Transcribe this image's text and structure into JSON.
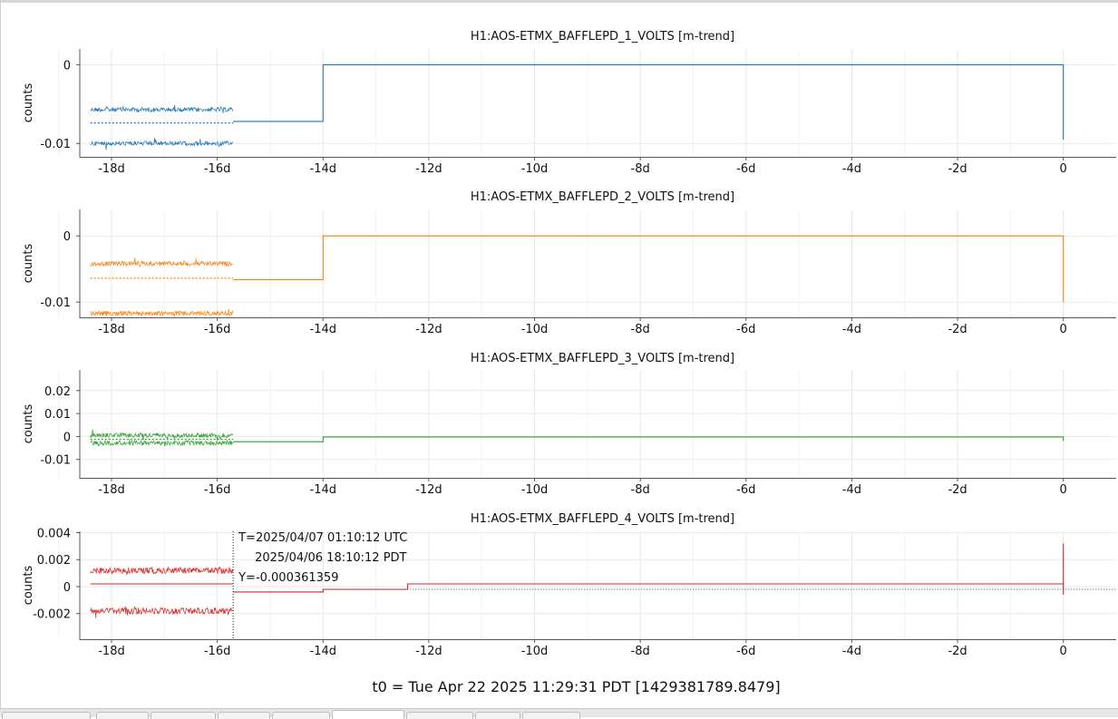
{
  "footer": {
    "t0": "t0 = Tue Apr 22 2025 11:29:31 PDT [1429381789.8479]"
  },
  "cursor": {
    "time_utc": "T=2025/04/07 01:10:12 UTC",
    "time_pdt": "2025/04/06 18:10:12 PDT",
    "y_value": "Y=-0.000361359"
  },
  "colors": {
    "ch1": "#1f77b4",
    "ch2": "#ff7f0e",
    "ch3": "#2ca02c",
    "ch4": "#d62728",
    "grid": "#e9e9e9",
    "axis": "#555555"
  },
  "chart_data": [
    {
      "type": "line",
      "title": "H1:AOS-ETMX_BAFFLEPD_1_VOLTS [m-trend]",
      "ylabel": "counts",
      "xlim": [
        -18.6,
        1.0
      ],
      "ylim": [
        -0.0117,
        0.002
      ],
      "xticks": [
        -18,
        -16,
        -14,
        -12,
        -10,
        -8,
        -6,
        -4,
        -2,
        0
      ],
      "xtick_labels": [
        "-18d",
        "-16d",
        "-14d",
        "-12d",
        "-10d",
        "-8d",
        "-6d",
        "-4d",
        "-2d",
        "0"
      ],
      "yticks": [
        0,
        -0.01
      ],
      "ytick_labels": [
        "0",
        "-0.01"
      ],
      "grid": true,
      "series": [
        {
          "role": "max",
          "style": "noisy",
          "x": [
            -18.4,
            -15.7
          ],
          "values": [
            -0.0057,
            -0.0057
          ]
        },
        {
          "role": "mean",
          "style": "dashed",
          "x": [
            -18.4,
            -15.7
          ],
          "values": [
            -0.0074,
            -0.0074
          ]
        },
        {
          "role": "min",
          "style": "noisy",
          "x": [
            -18.4,
            -15.7
          ],
          "values": [
            -0.01,
            -0.01
          ]
        },
        {
          "role": "trend",
          "style": "solid",
          "x": [
            -15.7,
            -14.0,
            -14.0,
            0.0,
            0.0
          ],
          "values": [
            -0.0072,
            -0.0072,
            0.0,
            0.0,
            -0.0095
          ]
        }
      ]
    },
    {
      "type": "line",
      "title": "H1:AOS-ETMX_BAFFLEPD_2_VOLTS [m-trend]",
      "ylabel": "counts",
      "xlim": [
        -18.6,
        1.0
      ],
      "ylim": [
        -0.0123,
        0.004
      ],
      "xticks": [
        -18,
        -16,
        -14,
        -12,
        -10,
        -8,
        -6,
        -4,
        -2,
        0
      ],
      "xtick_labels": [
        "-18d",
        "-16d",
        "-14d",
        "-12d",
        "-10d",
        "-8d",
        "-6d",
        "-4d",
        "-2d",
        "0"
      ],
      "yticks": [
        0,
        -0.01
      ],
      "ytick_labels": [
        "0",
        "-0.01"
      ],
      "grid": true,
      "series": [
        {
          "role": "max",
          "style": "noisy",
          "x": [
            -18.4,
            -15.7
          ],
          "values": [
            -0.0042,
            -0.0042
          ]
        },
        {
          "role": "mean",
          "style": "dashed",
          "x": [
            -18.4,
            -15.7
          ],
          "values": [
            -0.0064,
            -0.0064
          ]
        },
        {
          "role": "min",
          "style": "noisy",
          "x": [
            -18.4,
            -15.7
          ],
          "values": [
            -0.0117,
            -0.0117
          ]
        },
        {
          "role": "trend",
          "style": "solid",
          "x": [
            -15.7,
            -14.0,
            -14.0,
            0.0,
            0.0
          ],
          "values": [
            -0.0066,
            -0.0066,
            0.0,
            0.0,
            -0.01
          ]
        }
      ]
    },
    {
      "type": "line",
      "title": "H1:AOS-ETMX_BAFFLEPD_3_VOLTS [m-trend]",
      "ylabel": "counts",
      "xlim": [
        -18.6,
        1.0
      ],
      "ylim": [
        -0.018,
        0.029
      ],
      "xticks": [
        -18,
        -16,
        -14,
        -12,
        -10,
        -8,
        -6,
        -4,
        -2,
        0
      ],
      "xtick_labels": [
        "-18d",
        "-16d",
        "-14d",
        "-12d",
        "-10d",
        "-8d",
        "-6d",
        "-4d",
        "-2d",
        "0"
      ],
      "yticks": [
        0.02,
        0.01,
        0,
        -0.01
      ],
      "ytick_labels": [
        "0.02",
        "0.01",
        "0",
        "-0.01"
      ],
      "grid": true,
      "series": [
        {
          "role": "max",
          "style": "noisy",
          "x": [
            -18.4,
            -15.7
          ],
          "values": [
            0.0005,
            0.0005
          ]
        },
        {
          "role": "mean",
          "style": "dashed",
          "x": [
            -18.4,
            -15.7
          ],
          "values": [
            -0.0012,
            -0.0012
          ]
        },
        {
          "role": "min",
          "style": "noisy",
          "x": [
            -18.4,
            -15.7
          ],
          "values": [
            -0.0028,
            -0.0028
          ]
        },
        {
          "role": "trend",
          "style": "solid",
          "x": [
            -15.7,
            -14.0,
            -14.0,
            0.0,
            0.0
          ],
          "values": [
            -0.0023,
            -0.0023,
            -0.0002,
            -0.0002,
            -0.002
          ]
        }
      ]
    },
    {
      "type": "line",
      "title": "H1:AOS-ETMX_BAFFLEPD_4_VOLTS [m-trend]",
      "ylabel": "counts",
      "xlim": [
        -18.6,
        1.0
      ],
      "ylim": [
        -0.0039,
        0.0041
      ],
      "xticks": [
        -18,
        -16,
        -14,
        -12,
        -10,
        -8,
        -6,
        -4,
        -2,
        0
      ],
      "xtick_labels": [
        "-18d",
        "-16d",
        "-14d",
        "-12d",
        "-10d",
        "-8d",
        "-6d",
        "-4d",
        "-2d",
        "0"
      ],
      "yticks": [
        0.004,
        0.002,
        0,
        -0.002
      ],
      "ytick_labels": [
        "0.004",
        "0.002",
        "0",
        "-0.002"
      ],
      "grid": true,
      "cursor": {
        "x": -15.7,
        "y": -0.000361359
      },
      "series": [
        {
          "role": "max",
          "style": "noisy",
          "x": [
            -18.4,
            -15.7
          ],
          "values": [
            0.0012,
            0.0012
          ]
        },
        {
          "role": "mean",
          "style": "solid",
          "x": [
            -18.4,
            -15.7
          ],
          "values": [
            0.0002,
            0.0002
          ]
        },
        {
          "role": "min",
          "style": "noisy",
          "x": [
            -18.4,
            -15.7
          ],
          "values": [
            -0.0018,
            -0.0018
          ]
        },
        {
          "role": "trend",
          "style": "solid",
          "x": [
            -15.7,
            -14.0,
            -14.0,
            -12.4,
            -12.4,
            0.0,
            0.0,
            0.0
          ],
          "values": [
            -0.0004,
            -0.0004,
            -0.0002,
            -0.0002,
            0.0002,
            0.0002,
            0.0032,
            -0.0006
          ]
        },
        {
          "role": "reference",
          "style": "dotted",
          "x": [
            -14.0,
            1.0
          ],
          "values": [
            -0.0002,
            -0.0002
          ]
        }
      ]
    }
  ]
}
